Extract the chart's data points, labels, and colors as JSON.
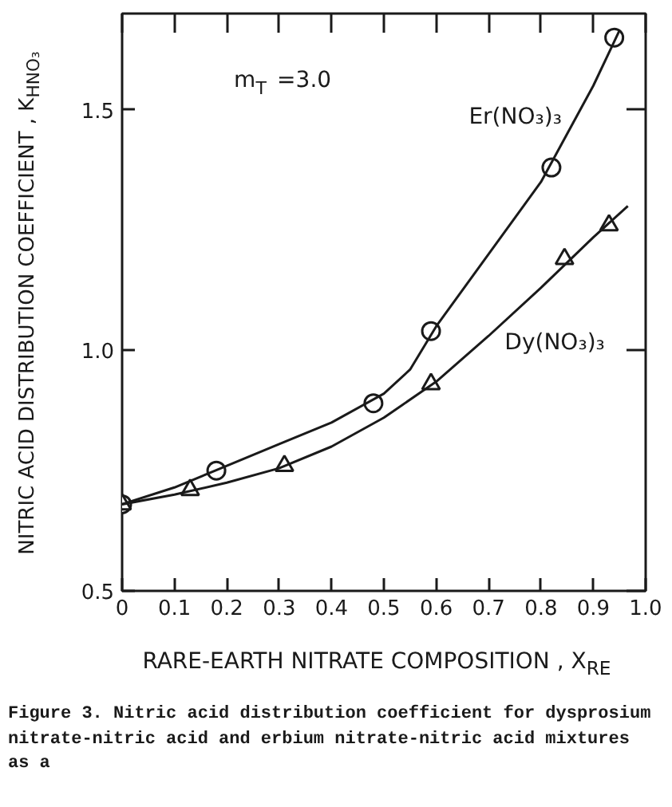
{
  "chart_data": {
    "type": "scatter",
    "xlabel": "RARE-EARTH NITRATE COMPOSITION , X$_{RE}$",
    "ylabel": "NITRIC ACID DISTRIBUTION COEFFICIENT , K$_{HNO₃}$",
    "xlim": [
      0,
      1
    ],
    "ylim": [
      0.5,
      1.7
    ],
    "xticks": [
      0,
      0.1,
      0.2,
      0.3,
      0.4,
      0.5,
      0.6,
      0.7,
      0.8,
      0.9,
      {
        "value": 1,
        "label": "1.0"
      }
    ],
    "yticks": [
      0.5,
      {
        "value": 1,
        "label": "1.0"
      },
      1.5
    ],
    "grid": false,
    "series": [
      {
        "name": "Er(NO₃)₃",
        "marker": "circle",
        "color": "#1a1a1a",
        "x": [
          0,
          0.18,
          0.48,
          0.59,
          0.82,
          0.94
        ],
        "values": [
          0.68,
          0.75,
          0.89,
          1.04,
          1.38,
          1.65
        ]
      },
      {
        "name": "Dy(NO₃)₃",
        "marker": "triangle",
        "color": "#1a1a1a",
        "x": [
          0,
          0.13,
          0.31,
          0.59,
          0.845,
          0.93
        ],
        "values": [
          0.68,
          0.71,
          0.76,
          0.93,
          1.19,
          1.26
        ]
      },
      {
        "type": "line",
        "line_style": "solid",
        "color": "#1a1a1a",
        "x": [
          0,
          0.1,
          0.2,
          0.3,
          0.4,
          0.5,
          0.55,
          0.6,
          0.7,
          0.8,
          0.9,
          0.95
        ],
        "values": [
          0.68,
          0.715,
          0.76,
          0.805,
          0.85,
          0.91,
          0.96,
          1.05,
          1.2,
          1.35,
          1.55,
          1.665
        ]
      },
      {
        "type": "line",
        "line_style": "solid",
        "color": "#1a1a1a",
        "x": [
          0,
          0.1,
          0.2,
          0.3,
          0.4,
          0.5,
          0.6,
          0.7,
          0.8,
          0.9,
          0.966
        ],
        "values": [
          0.68,
          0.7,
          0.725,
          0.755,
          0.8,
          0.86,
          0.935,
          1.03,
          1.13,
          1.235,
          1.3
        ]
      }
    ],
    "annotations": [
      "m$_{T}$ =3.0",
      "Figure 3.  Nitric acid distribution coefficient for dysprosium nitrate-nitric acid and erbium nitrate-nitric acid mixtures as a"
    ]
  }
}
